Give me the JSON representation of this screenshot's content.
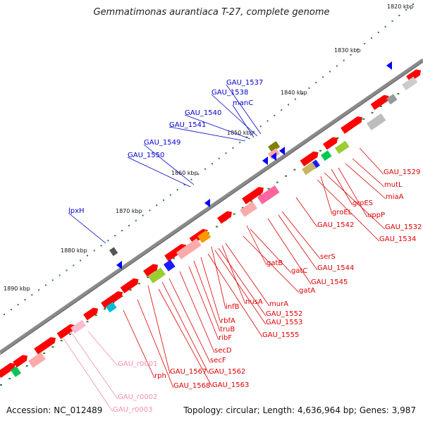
{
  "title": "Gemmatimonas aurantiaca T-27, complete genome",
  "accession": "Accession: NC_012489",
  "topology": "Topology: circular; Length: 4,636,964 bp; Genes: 3,987",
  "colors": {
    "forward": "#ff0000",
    "reverse": "#0000ff",
    "rna": "#f48fb1",
    "backbone": "#808080"
  },
  "ticks": [
    "1820 kbp",
    "1830 kbp",
    "1840 kbp",
    "1850 kbp",
    "1860 kbp",
    "1870 kbp",
    "1880 kbp",
    "1890 kbp"
  ],
  "blue_labels": [
    "GAU_1537",
    "GAU_1538",
    "manC",
    "GAU_1540",
    "GAU_1541",
    "GAU_1549",
    "GAU_1550",
    "lpxH"
  ],
  "red_labels": [
    "GAU_1529",
    "mutL",
    "miaA",
    "uppP",
    "groES",
    "GAU_1532",
    "groEL",
    "GAU_1534",
    "GAU_1542",
    "serS",
    "GAU_1544",
    "gatB",
    "gatC",
    "GAU_1545",
    "gatA",
    "murA",
    "nusA",
    "GAU_1552",
    "infB",
    "GAU_1553",
    "rbfA",
    "truB",
    "ribF",
    "GAU_1555",
    "secD",
    "secF",
    "GAU_1562",
    "rph",
    "GAU_1567",
    "GAU_1568",
    "GAU_1563"
  ],
  "pink_labels": [
    "GAU_r0001",
    "GAU_r0002",
    "GAU_r0003"
  ]
}
